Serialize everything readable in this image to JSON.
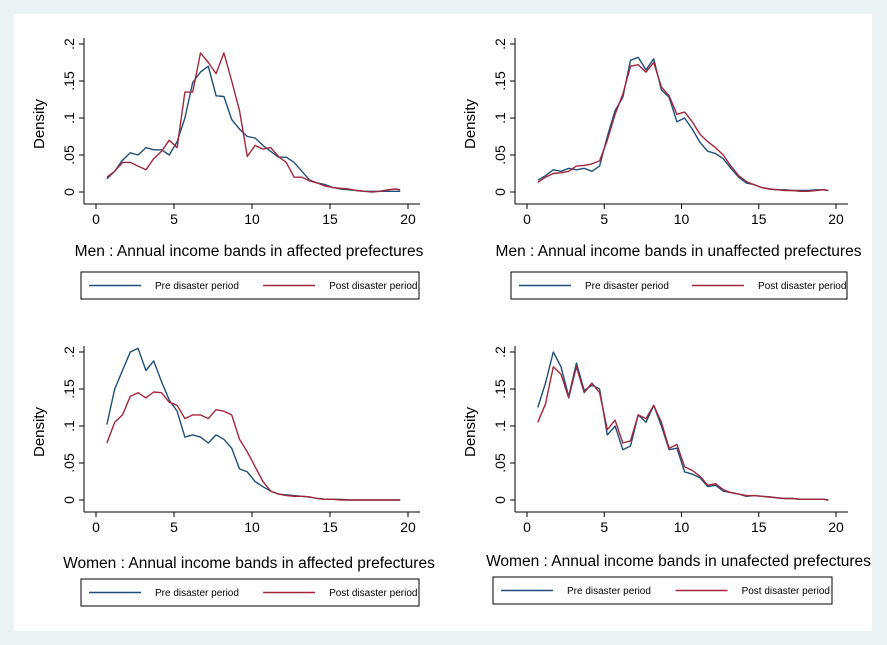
{
  "colors": {
    "pre": "#1f4e79",
    "post": "#a3273a",
    "background": "#eaf2f3"
  },
  "chart_data": [
    {
      "type": "line",
      "xlabel": "Men : Annual income bands in affected prefectures",
      "ylabel": "Density",
      "xlim": [
        0,
        20
      ],
      "ylim": [
        0,
        0.2
      ],
      "xticks": [
        "0",
        "5",
        "10",
        "15",
        "20"
      ],
      "yticks": [
        "0",
        ".05",
        ".1",
        ".15",
        ".2"
      ],
      "grid": false,
      "legend_position": "bottom",
      "series": [
        {
          "name": "Pre disaster period",
          "color": "#1f4e79",
          "x": [
            0.7,
            1.2,
            1.7,
            2.2,
            2.7,
            3.2,
            3.7,
            4.2,
            4.7,
            5.2,
            5.7,
            6.2,
            6.7,
            7.2,
            7.7,
            8.2,
            8.7,
            9.2,
            9.7,
            10.2,
            10.7,
            11.2,
            11.7,
            12.2,
            12.7,
            13.2,
            13.7,
            14.2,
            14.7,
            15.2,
            15.7,
            16.2,
            16.7,
            17.2,
            17.7,
            18.2,
            18.7,
            19.2,
            19.5
          ],
          "y": [
            0.018,
            0.028,
            0.043,
            0.053,
            0.05,
            0.06,
            0.057,
            0.057,
            0.05,
            0.068,
            0.1,
            0.148,
            0.162,
            0.17,
            0.13,
            0.129,
            0.098,
            0.085,
            0.075,
            0.073,
            0.063,
            0.055,
            0.047,
            0.047,
            0.04,
            0.028,
            0.016,
            0.012,
            0.01,
            0.006,
            0.004,
            0.003,
            0.002,
            0.001,
            0.001,
            0.001,
            0.001,
            0.001,
            0.001
          ]
        },
        {
          "name": "Post disaster period",
          "color": "#a3273a",
          "x": [
            0.7,
            1.2,
            1.7,
            2.2,
            2.7,
            3.2,
            3.7,
            4.2,
            4.7,
            5.2,
            5.7,
            6.2,
            6.7,
            7.2,
            7.7,
            8.2,
            8.7,
            9.2,
            9.7,
            10.2,
            10.7,
            11.2,
            11.7,
            12.2,
            12.7,
            13.2,
            13.7,
            14.2,
            14.7,
            15.2,
            15.7,
            16.2,
            16.7,
            17.2,
            17.7,
            18.2,
            18.7,
            19.2,
            19.5
          ],
          "y": [
            0.02,
            0.028,
            0.04,
            0.04,
            0.035,
            0.03,
            0.045,
            0.055,
            0.07,
            0.06,
            0.135,
            0.135,
            0.188,
            0.175,
            0.16,
            0.188,
            0.15,
            0.11,
            0.048,
            0.063,
            0.058,
            0.06,
            0.048,
            0.04,
            0.02,
            0.02,
            0.015,
            0.012,
            0.008,
            0.006,
            0.005,
            0.004,
            0.002,
            0.001,
            0.0,
            0.001,
            0.003,
            0.004,
            0.003
          ]
        }
      ]
    },
    {
      "type": "line",
      "xlabel": "Men : Annual income bands in unaffected prefectures",
      "ylabel": "Density",
      "xlim": [
        0,
        20
      ],
      "ylim": [
        0,
        0.2
      ],
      "xticks": [
        "0",
        "5",
        "10",
        "15",
        "20"
      ],
      "yticks": [
        "0",
        ".05",
        ".1",
        ".15",
        ".2"
      ],
      "grid": false,
      "legend_position": "bottom",
      "series": [
        {
          "name": "Pre disaster period",
          "color": "#1f4e79",
          "x": [
            0.7,
            1.2,
            1.7,
            2.2,
            2.7,
            3.2,
            3.7,
            4.2,
            4.7,
            5.2,
            5.7,
            6.2,
            6.7,
            7.2,
            7.7,
            8.2,
            8.7,
            9.2,
            9.7,
            10.2,
            10.7,
            11.2,
            11.7,
            12.2,
            12.7,
            13.2,
            13.7,
            14.2,
            14.7,
            15.2,
            15.7,
            16.2,
            16.7,
            17.2,
            17.7,
            18.2,
            18.7,
            19.2,
            19.5
          ],
          "y": [
            0.016,
            0.022,
            0.03,
            0.028,
            0.032,
            0.03,
            0.032,
            0.028,
            0.035,
            0.075,
            0.11,
            0.128,
            0.178,
            0.182,
            0.165,
            0.18,
            0.138,
            0.128,
            0.095,
            0.1,
            0.085,
            0.067,
            0.055,
            0.052,
            0.045,
            0.032,
            0.02,
            0.012,
            0.01,
            0.006,
            0.004,
            0.003,
            0.003,
            0.002,
            0.002,
            0.002,
            0.003,
            0.003,
            0.002
          ]
        },
        {
          "name": "Post disaster period",
          "color": "#a3273a",
          "x": [
            0.7,
            1.2,
            1.7,
            2.2,
            2.7,
            3.2,
            3.7,
            4.2,
            4.7,
            5.2,
            5.7,
            6.2,
            6.7,
            7.2,
            7.7,
            8.2,
            8.7,
            9.2,
            9.7,
            10.2,
            10.7,
            11.2,
            11.7,
            12.2,
            12.7,
            13.2,
            13.7,
            14.2,
            14.7,
            15.2,
            15.7,
            16.2,
            16.7,
            17.2,
            17.7,
            18.2,
            18.7,
            19.2,
            19.5
          ],
          "y": [
            0.013,
            0.02,
            0.025,
            0.026,
            0.028,
            0.035,
            0.036,
            0.038,
            0.042,
            0.07,
            0.105,
            0.132,
            0.17,
            0.172,
            0.162,
            0.175,
            0.142,
            0.13,
            0.105,
            0.108,
            0.095,
            0.078,
            0.068,
            0.06,
            0.05,
            0.035,
            0.022,
            0.014,
            0.01,
            0.006,
            0.004,
            0.003,
            0.002,
            0.002,
            0.001,
            0.001,
            0.002,
            0.003,
            0.002
          ]
        }
      ]
    },
    {
      "type": "line",
      "xlabel": "Women : Annual income bands in affected prefectures",
      "ylabel": "Density",
      "xlim": [
        0,
        20
      ],
      "ylim": [
        0,
        0.2
      ],
      "xticks": [
        "0",
        "5",
        "10",
        "15",
        "20"
      ],
      "yticks": [
        "0",
        ".05",
        ".1",
        ".15",
        ".2"
      ],
      "grid": false,
      "legend_position": "bottom",
      "series": [
        {
          "name": "Pre disaster period",
          "color": "#1f4e79",
          "x": [
            0.7,
            1.2,
            1.7,
            2.2,
            2.7,
            3.2,
            3.7,
            4.2,
            4.7,
            5.2,
            5.7,
            6.2,
            6.7,
            7.2,
            7.7,
            8.2,
            8.7,
            9.2,
            9.7,
            10.2,
            10.7,
            11.2,
            11.7,
            12.2,
            12.7,
            13.2,
            13.7,
            14.2,
            14.7,
            15.2,
            15.7,
            16.2,
            16.7,
            17.2,
            17.7,
            18.2,
            18.7,
            19.2,
            19.5
          ],
          "y": [
            0.102,
            0.15,
            0.175,
            0.2,
            0.205,
            0.175,
            0.188,
            0.16,
            0.135,
            0.12,
            0.085,
            0.088,
            0.085,
            0.077,
            0.088,
            0.082,
            0.07,
            0.042,
            0.038,
            0.025,
            0.018,
            0.012,
            0.008,
            0.007,
            0.006,
            0.005,
            0.004,
            0.002,
            0.001,
            0.001,
            0.001,
            0.0,
            0.0,
            0.0,
            0.0,
            0.0,
            0.0,
            0.0,
            0.0
          ]
        },
        {
          "name": "Post disaster period",
          "color": "#a3273a",
          "x": [
            0.7,
            1.2,
            1.7,
            2.2,
            2.7,
            3.2,
            3.7,
            4.2,
            4.7,
            5.2,
            5.7,
            6.2,
            6.7,
            7.2,
            7.7,
            8.2,
            8.7,
            9.2,
            9.7,
            10.2,
            10.7,
            11.2,
            11.7,
            12.2,
            12.7,
            13.2,
            13.7,
            14.2,
            14.7,
            15.2,
            15.7,
            16.2,
            16.7,
            17.2,
            17.7,
            18.2,
            18.7,
            19.2,
            19.5
          ],
          "y": [
            0.077,
            0.105,
            0.115,
            0.14,
            0.145,
            0.138,
            0.146,
            0.145,
            0.132,
            0.128,
            0.11,
            0.115,
            0.115,
            0.11,
            0.122,
            0.12,
            0.115,
            0.082,
            0.065,
            0.045,
            0.025,
            0.012,
            0.008,
            0.006,
            0.005,
            0.005,
            0.004,
            0.002,
            0.001,
            0.001,
            0.0,
            0.0,
            0.0,
            0.0,
            0.0,
            0.0,
            0.0,
            0.0,
            0.0
          ]
        }
      ]
    },
    {
      "type": "line",
      "xlabel": "Women : Annual income bands in unafected prefectures",
      "ylabel": "Density",
      "xlim": [
        0,
        20
      ],
      "ylim": [
        0,
        0.2
      ],
      "xticks": [
        "0",
        "5",
        "10",
        "15",
        "20"
      ],
      "yticks": [
        "0",
        ".05",
        ".1",
        ".15",
        ".2"
      ],
      "grid": false,
      "legend_position": "bottom",
      "series": [
        {
          "name": "Pre disaster period",
          "color": "#1f4e79",
          "x": [
            0.7,
            1.2,
            1.7,
            2.2,
            2.7,
            3.2,
            3.7,
            4.2,
            4.7,
            5.2,
            5.7,
            6.2,
            6.7,
            7.2,
            7.7,
            8.2,
            8.7,
            9.2,
            9.7,
            10.2,
            10.7,
            11.2,
            11.7,
            12.2,
            12.7,
            13.2,
            13.7,
            14.2,
            14.7,
            15.2,
            15.7,
            16.2,
            16.7,
            17.2,
            17.7,
            18.2,
            18.7,
            19.2,
            19.5
          ],
          "y": [
            0.125,
            0.158,
            0.2,
            0.18,
            0.14,
            0.185,
            0.148,
            0.155,
            0.15,
            0.088,
            0.1,
            0.068,
            0.073,
            0.115,
            0.105,
            0.128,
            0.1,
            0.068,
            0.07,
            0.038,
            0.035,
            0.03,
            0.018,
            0.02,
            0.012,
            0.01,
            0.008,
            0.005,
            0.006,
            0.005,
            0.004,
            0.003,
            0.002,
            0.002,
            0.001,
            0.001,
            0.001,
            0.001,
            0.0
          ]
        },
        {
          "name": "Post disaster period",
          "color": "#a3273a",
          "x": [
            0.7,
            1.2,
            1.7,
            2.2,
            2.7,
            3.2,
            3.7,
            4.2,
            4.7,
            5.2,
            5.7,
            6.2,
            6.7,
            7.2,
            7.7,
            8.2,
            8.7,
            9.2,
            9.7,
            10.2,
            10.7,
            11.2,
            11.7,
            12.2,
            12.7,
            13.2,
            13.7,
            14.2,
            14.7,
            15.2,
            15.7,
            16.2,
            16.7,
            17.2,
            17.7,
            18.2,
            18.7,
            19.2,
            19.5
          ],
          "y": [
            0.105,
            0.13,
            0.18,
            0.17,
            0.138,
            0.18,
            0.145,
            0.158,
            0.145,
            0.095,
            0.108,
            0.077,
            0.08,
            0.115,
            0.11,
            0.128,
            0.105,
            0.07,
            0.075,
            0.045,
            0.04,
            0.032,
            0.02,
            0.022,
            0.014,
            0.01,
            0.008,
            0.006,
            0.006,
            0.005,
            0.004,
            0.003,
            0.002,
            0.002,
            0.001,
            0.001,
            0.001,
            0.001,
            0.0
          ]
        }
      ]
    }
  ]
}
